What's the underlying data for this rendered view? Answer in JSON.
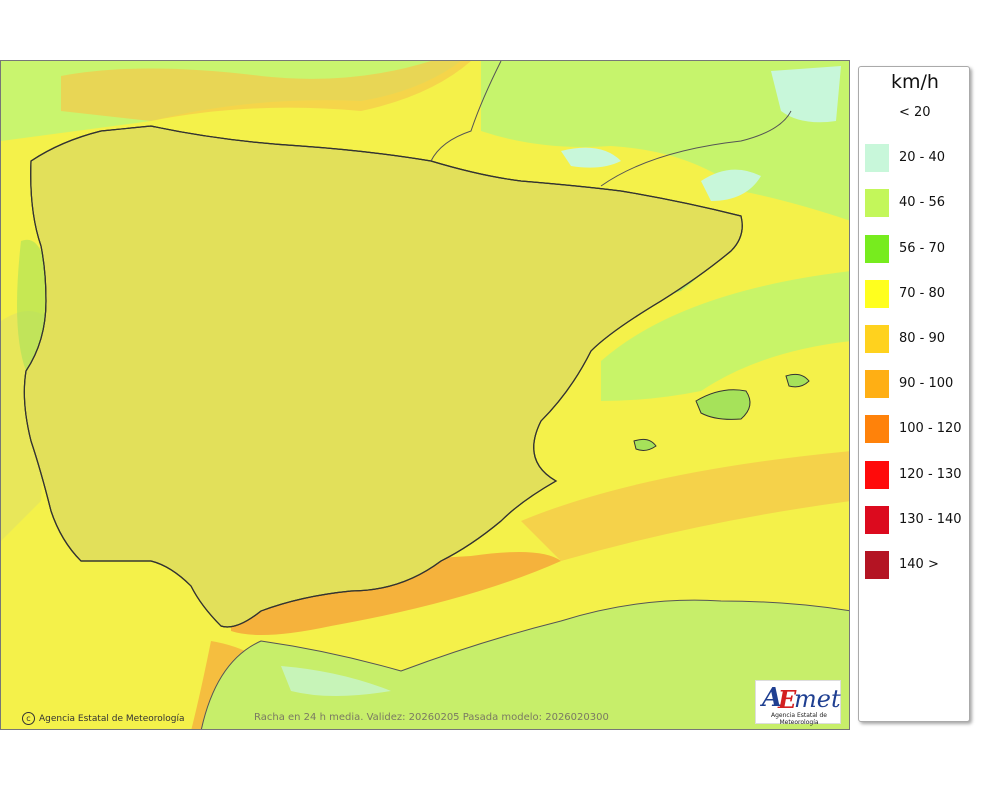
{
  "map": {
    "caption": "Racha en 24 h media. Validez: 20260205 Pasada modelo: 2026020300",
    "credit": "Agencia Estatal de Meteorología",
    "credit_symbol": "c",
    "logo": {
      "a": "A",
      "e": "E",
      "met": "met",
      "subtitle": "Agencia Estatal de Meteorología"
    },
    "colors": {
      "sea_base": "#f6f244",
      "land_base": "#e3e259",
      "border": "#222222",
      "province_line": "#8c8c8c"
    }
  },
  "legend": {
    "unit": "km/h",
    "items": [
      {
        "label": "< 20",
        "color": "#ffffff"
      },
      {
        "label": "20 - 40",
        "color": "#c8f7da"
      },
      {
        "label": "40 - 56",
        "color": "#c3f75a"
      },
      {
        "label": "56 - 70",
        "color": "#77ec1e"
      },
      {
        "label": "70 - 80",
        "color": "#ffff1e"
      },
      {
        "label": "80 - 90",
        "color": "#ffd21e"
      },
      {
        "label": "90 - 100",
        "color": "#ffaf14"
      },
      {
        "label": "100 - 120",
        "color": "#ff820a"
      },
      {
        "label": "120 - 130",
        "color": "#ff0a0a"
      },
      {
        "label": "130 - 140",
        "color": "#dc0a1e"
      },
      {
        "label": "140 >",
        "color": "#b41423"
      }
    ]
  }
}
